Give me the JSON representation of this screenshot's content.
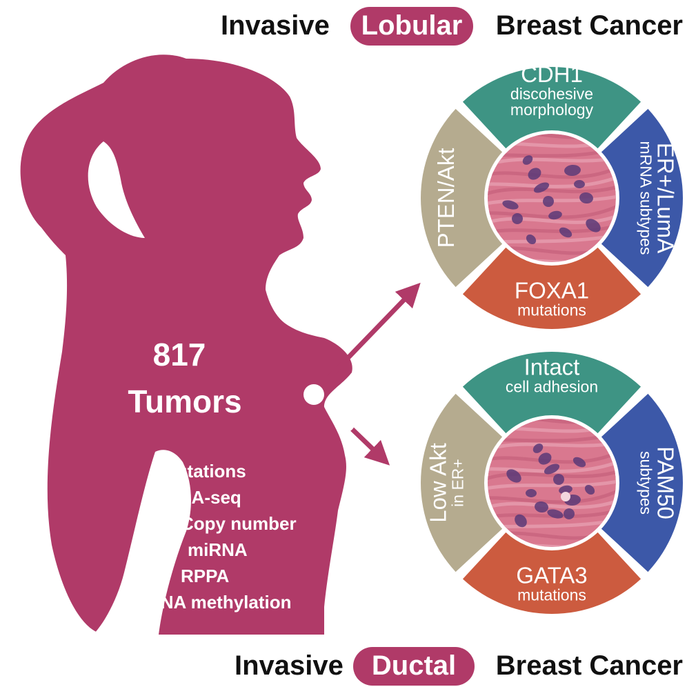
{
  "colors": {
    "magenta": "#B03A68",
    "teal": "#3E9484",
    "blue": "#3C58A8",
    "orange": "#CC5B3F",
    "tan": "#B5AB8F",
    "tissue_pink": "#D9788F",
    "nucleus_purple": "#5A3A78",
    "text_dark": "#111111",
    "text_light": "#ffffff"
  },
  "header": {
    "prefix": "Invasive",
    "highlight": "Lobular",
    "suffix": "Breast Cancer"
  },
  "footer": {
    "prefix": "Invasive",
    "highlight": "Ductal",
    "suffix": "Breast Cancer"
  },
  "silhouette": {
    "count": "817",
    "count_label": "Tumors",
    "platforms": [
      "Mutations",
      "RNA-seq",
      "Copy number",
      "miRNA",
      "RPPA",
      "DNA methylation"
    ]
  },
  "lobular_ring": {
    "top": {
      "title": "CDH1",
      "lines": [
        "discohesive",
        "morphology"
      ]
    },
    "right": {
      "title": "ER+/LumA",
      "lines": [
        "mRNA subtypes"
      ]
    },
    "bottom": {
      "title": "FOXA1",
      "lines": [
        "mutations"
      ]
    },
    "left": {
      "title": "PTEN/Akt",
      "lines": []
    }
  },
  "ductal_ring": {
    "top": {
      "title": "Intact",
      "lines": [
        "cell adhesion"
      ]
    },
    "right": {
      "title": "PAM50",
      "lines": [
        "subtypes"
      ]
    },
    "bottom": {
      "title": "GATA3",
      "lines": [
        "mutations"
      ]
    },
    "left": {
      "title": "Low Akt",
      "lines": [
        "in ER+"
      ]
    }
  }
}
